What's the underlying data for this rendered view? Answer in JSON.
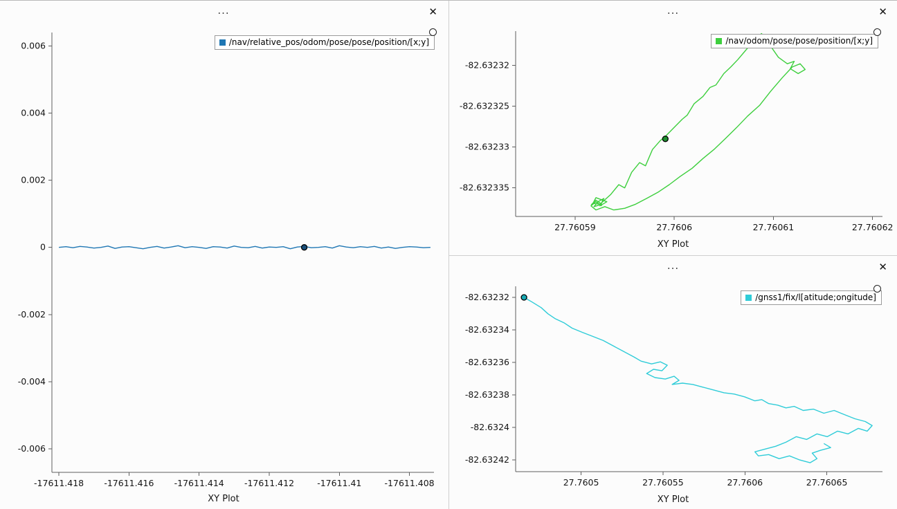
{
  "chrome": {
    "menu_label": "...",
    "close_label": "✕"
  },
  "chart_data": [
    {
      "type": "line",
      "panel": "left",
      "xlabel": "XY Plot",
      "legend": "/nav/relative_pos/odom/pose/pose/position/[x;y]",
      "legend_position": "top-right",
      "color": "#1f77b4",
      "marker_fill": "#1a4f7a",
      "xlim": [
        -17611.4182,
        -17611.4073
      ],
      "ylim": [
        -0.0067,
        0.0064
      ],
      "xticks": [
        -17611.418,
        -17611.416,
        -17611.414,
        -17611.412,
        -17611.41,
        -17611.408
      ],
      "xtick_labels": [
        "-17611.418",
        "-17611.416",
        "-17611.414",
        "-17611.412",
        "-17611.41",
        "-17611.408"
      ],
      "yticks": [
        0.006,
        0.004,
        0.002,
        0,
        -0.002,
        -0.004,
        -0.006
      ],
      "ytick_labels": [
        "0.006",
        "0.004",
        "0.002",
        "0",
        "-0.002",
        "-0.004",
        "-0.006"
      ],
      "marker": [
        -17611.411,
        0
      ],
      "points": [
        [
          -17611.418,
          0
        ],
        [
          -17611.4178,
          2e-05
        ],
        [
          -17611.4176,
          -1e-05
        ],
        [
          -17611.4174,
          3e-05
        ],
        [
          -17611.4172,
          1e-05
        ],
        [
          -17611.417,
          -2e-05
        ],
        [
          -17611.4168,
          0
        ],
        [
          -17611.4166,
          4e-05
        ],
        [
          -17611.4164,
          -3e-05
        ],
        [
          -17611.4162,
          1e-05
        ],
        [
          -17611.416,
          2e-05
        ],
        [
          -17611.4158,
          -1e-05
        ],
        [
          -17611.4156,
          -4e-05
        ],
        [
          -17611.4154,
          0
        ],
        [
          -17611.4152,
          3e-05
        ],
        [
          -17611.415,
          -2e-05
        ],
        [
          -17611.4148,
          1e-05
        ],
        [
          -17611.4146,
          5e-05
        ],
        [
          -17611.4144,
          -1e-05
        ],
        [
          -17611.4142,
          2e-05
        ],
        [
          -17611.414,
          0
        ],
        [
          -17611.4138,
          -3e-05
        ],
        [
          -17611.4136,
          2e-05
        ],
        [
          -17611.4134,
          1e-05
        ],
        [
          -17611.4132,
          -2e-05
        ],
        [
          -17611.413,
          4e-05
        ],
        [
          -17611.4128,
          0
        ],
        [
          -17611.4126,
          -1e-05
        ],
        [
          -17611.4124,
          3e-05
        ],
        [
          -17611.4122,
          -2e-05
        ],
        [
          -17611.412,
          1e-05
        ],
        [
          -17611.4118,
          0
        ],
        [
          -17611.4116,
          2e-05
        ],
        [
          -17611.4114,
          -4e-05
        ],
        [
          -17611.4112,
          1e-05
        ],
        [
          -17611.411,
          3e-05
        ],
        [
          -17611.4108,
          -1e-05
        ],
        [
          -17611.4106,
          0
        ],
        [
          -17611.4104,
          2e-05
        ],
        [
          -17611.4102,
          -2e-05
        ],
        [
          -17611.41,
          5e-05
        ],
        [
          -17611.4098,
          1e-05
        ],
        [
          -17611.4096,
          -1e-05
        ],
        [
          -17611.4094,
          2e-05
        ],
        [
          -17611.4092,
          0
        ],
        [
          -17611.409,
          3e-05
        ],
        [
          -17611.4088,
          -2e-05
        ],
        [
          -17611.4086,
          1e-05
        ],
        [
          -17611.4084,
          -3e-05
        ],
        [
          -17611.4082,
          0
        ],
        [
          -17611.408,
          2e-05
        ],
        [
          -17611.4078,
          1e-05
        ],
        [
          -17611.4076,
          -1e-05
        ],
        [
          -17611.4074,
          0
        ]
      ]
    },
    {
      "type": "line",
      "panel": "top-right",
      "xlabel": "XY Plot",
      "legend": "/nav/odom/pose/pose/position/[x;y]",
      "legend_position": "top-right",
      "color": "#3ecf3e",
      "marker_fill": "#1f8f2f",
      "xlim": [
        27.760584,
        27.760621
      ],
      "ylim": [
        -82.6323385,
        -82.6323158
      ],
      "xticks": [
        27.76059,
        27.7606,
        27.76061,
        27.76062
      ],
      "xtick_labels": [
        "27.76059",
        "27.7606",
        "27.76061",
        "27.76062"
      ],
      "yticks": [
        -82.63232,
        -82.632325,
        -82.63233,
        -82.632335
      ],
      "ytick_labels": [
        "-82.63232",
        "-82.632325",
        "-82.63233",
        "-82.632335"
      ],
      "marker": [
        27.7605991,
        -82.632329
      ],
      "points": [
        [
          27.7605916,
          -82.6323371
        ],
        [
          27.7605921,
          -82.6323365
        ],
        [
          27.7605927,
          -82.632337
        ],
        [
          27.7605919,
          -82.6323373
        ],
        [
          27.7605923,
          -82.6323367
        ],
        [
          27.7605929,
          -82.6323363
        ],
        [
          27.7605925,
          -82.6323372
        ],
        [
          27.7605932,
          -82.6323367
        ],
        [
          27.7605921,
          -82.6323362
        ],
        [
          27.7605918,
          -82.6323369
        ],
        [
          27.7605925,
          -82.632337
        ],
        [
          27.7605936,
          -82.6323358
        ],
        [
          27.7605944,
          -82.6323346
        ],
        [
          27.760595,
          -82.632335
        ],
        [
          27.7605957,
          -82.6323331
        ],
        [
          27.7605965,
          -82.6323319
        ],
        [
          27.7605971,
          -82.6323323
        ],
        [
          27.7605978,
          -82.6323303
        ],
        [
          27.7605986,
          -82.6323292
        ],
        [
          27.7605991,
          -82.6323287
        ],
        [
          27.7605999,
          -82.6323277
        ],
        [
          27.7606008,
          -82.6323266
        ],
        [
          27.7606013,
          -82.6323261
        ],
        [
          27.760602,
          -82.6323247
        ],
        [
          27.7606029,
          -82.6323238
        ],
        [
          27.7606036,
          -82.6323227
        ],
        [
          27.7606042,
          -82.6323224
        ],
        [
          27.760605,
          -82.632321
        ],
        [
          27.7606057,
          -82.6323202
        ],
        [
          27.7606064,
          -82.6323193
        ],
        [
          27.7606071,
          -82.6323183
        ],
        [
          27.7606078,
          -82.6323173
        ],
        [
          27.7606084,
          -82.6323166
        ],
        [
          27.7606088,
          -82.6323161
        ],
        [
          27.7606091,
          -82.6323165
        ],
        [
          27.7606088,
          -82.6323171
        ],
        [
          27.7606097,
          -82.6323176
        ],
        [
          27.7606105,
          -82.632319
        ],
        [
          27.7606114,
          -82.6323198
        ],
        [
          27.7606121,
          -82.6323195
        ],
        [
          27.7606117,
          -82.6323204
        ],
        [
          27.7606125,
          -82.632321
        ],
        [
          27.7606132,
          -82.6323205
        ],
        [
          27.7606127,
          -82.6323198
        ],
        [
          27.7606119,
          -82.6323202
        ],
        [
          27.7606109,
          -82.6323215
        ],
        [
          27.7606097,
          -82.6323232
        ],
        [
          27.7606086,
          -82.6323249
        ],
        [
          27.7606074,
          -82.6323262
        ],
        [
          27.7606063,
          -82.6323276
        ],
        [
          27.7606052,
          -82.6323289
        ],
        [
          27.760604,
          -82.6323303
        ],
        [
          27.7606029,
          -82.6323314
        ],
        [
          27.7606018,
          -82.6323326
        ],
        [
          27.7606006,
          -82.6323336
        ],
        [
          27.7605995,
          -82.6323346
        ],
        [
          27.7605984,
          -82.6323355
        ],
        [
          27.7605972,
          -82.6323363
        ],
        [
          27.7605961,
          -82.632337
        ],
        [
          27.760595,
          -82.6323375
        ],
        [
          27.7605939,
          -82.6323377
        ],
        [
          27.760593,
          -82.6323373
        ],
        [
          27.7605921,
          -82.6323377
        ],
        [
          27.7605916,
          -82.6323372
        ],
        [
          27.7605921,
          -82.6323367
        ],
        [
          27.7605927,
          -82.6323372
        ]
      ]
    },
    {
      "type": "line",
      "panel": "bottom-right",
      "xlabel": "XY Plot",
      "legend": "/gnss1/fix/l[atitude;ongitude]",
      "legend_position": "top-right",
      "color": "#2fccd8",
      "marker_fill": "#18aab4",
      "xlim": [
        27.76046,
        27.760684
      ],
      "ylim": [
        -82.6324272,
        -82.6323133
      ],
      "xticks": [
        27.7605,
        27.76055,
        27.7606,
        27.76065
      ],
      "xtick_labels": [
        "27.7605",
        "27.76055",
        "27.7606",
        "27.76065"
      ],
      "yticks": [
        -82.63232,
        -82.63234,
        -82.63236,
        -82.63238,
        -82.6324,
        -82.63242
      ],
      "ytick_labels": [
        "-82.63232",
        "-82.63234",
        "-82.63236",
        "-82.63238",
        "-82.6324",
        "-82.63242"
      ],
      "marker": [
        27.7604651,
        -82.6323201
      ],
      "points": [
        [
          27.7604651,
          -82.6323201
        ],
        [
          27.7604701,
          -82.632323
        ],
        [
          27.7604756,
          -82.6323264
        ],
        [
          27.7604798,
          -82.6323302
        ],
        [
          27.760484,
          -82.6323331
        ],
        [
          27.7604895,
          -82.6323357
        ],
        [
          27.7604945,
          -82.632339
        ],
        [
          27.7605008,
          -82.6323416
        ],
        [
          27.7605072,
          -82.6323441
        ],
        [
          27.7605135,
          -82.6323466
        ],
        [
          27.7605198,
          -82.63235
        ],
        [
          27.7605261,
          -82.6323534
        ],
        [
          27.7605324,
          -82.6323568
        ],
        [
          27.7605366,
          -82.6323593
        ],
        [
          27.760543,
          -82.632361
        ],
        [
          27.7605484,
          -82.6323597
        ],
        [
          27.7605526,
          -82.6323618
        ],
        [
          27.7605493,
          -82.6323652
        ],
        [
          27.7605442,
          -82.6323643
        ],
        [
          27.76054,
          -82.6323669
        ],
        [
          27.7605451,
          -82.6323694
        ],
        [
          27.7605514,
          -82.6323703
        ],
        [
          27.7605568,
          -82.6323686
        ],
        [
          27.7605598,
          -82.6323711
        ],
        [
          27.7605556,
          -82.6323736
        ],
        [
          27.7605619,
          -82.6323728
        ],
        [
          27.7605682,
          -82.6323736
        ],
        [
          27.7605745,
          -82.6323753
        ],
        [
          27.7605809,
          -82.632377
        ],
        [
          27.7605872,
          -82.6323787
        ],
        [
          27.7605935,
          -82.6323795
        ],
        [
          27.7605998,
          -82.6323812
        ],
        [
          27.7606061,
          -82.6323837
        ],
        [
          27.7606103,
          -82.6323829
        ],
        [
          27.7606145,
          -82.6323854
        ],
        [
          27.76062,
          -82.6323863
        ],
        [
          27.7606251,
          -82.632388
        ],
        [
          27.7606301,
          -82.6323871
        ],
        [
          27.7606356,
          -82.6323896
        ],
        [
          27.7606419,
          -82.6323888
        ],
        [
          27.7606482,
          -82.6323913
        ],
        [
          27.7606545,
          -82.6323896
        ],
        [
          27.7606609,
          -82.6323922
        ],
        [
          27.7606672,
          -82.6323947
        ],
        [
          27.7606735,
          -82.6323964
        ],
        [
          27.7606777,
          -82.6323989
        ],
        [
          27.7606747,
          -82.6324023
        ],
        [
          27.7606693,
          -82.6324006
        ],
        [
          27.760663,
          -82.632404
        ],
        [
          27.7606566,
          -82.6324023
        ],
        [
          27.7606503,
          -82.6324057
        ],
        [
          27.760644,
          -82.632404
        ],
        [
          27.7606377,
          -82.6324074
        ],
        [
          27.7606314,
          -82.6324057
        ],
        [
          27.7606251,
          -82.6324091
        ],
        [
          27.7606188,
          -82.6324116
        ],
        [
          27.7606124,
          -82.6324133
        ],
        [
          27.7606061,
          -82.632415
        ],
        [
          27.7606082,
          -82.6324175
        ],
        [
          27.7606145,
          -82.6324167
        ],
        [
          27.7606209,
          -82.6324192
        ],
        [
          27.7606272,
          -82.6324175
        ],
        [
          27.7606335,
          -82.63242
        ],
        [
          27.7606398,
          -82.6324217
        ],
        [
          27.760644,
          -82.6324192
        ],
        [
          27.7606411,
          -82.6324158
        ],
        [
          27.7606461,
          -82.6324141
        ],
        [
          27.7606524,
          -82.6324124
        ],
        [
          27.7606482,
          -82.6324099
        ]
      ]
    }
  ]
}
